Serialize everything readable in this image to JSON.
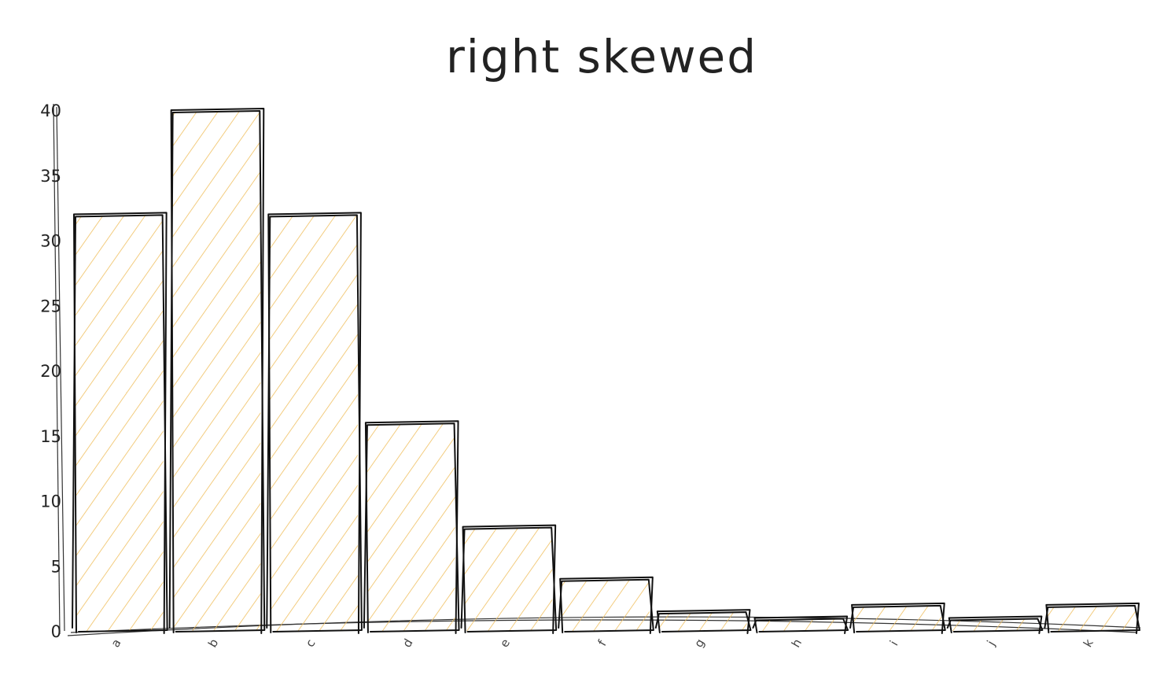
{
  "chart_data": {
    "type": "bar",
    "title": "right skewed",
    "xlabel": "",
    "ylabel": "",
    "categories": [
      "a",
      "b",
      "c",
      "d",
      "e",
      "f",
      "g",
      "h",
      "i",
      "j",
      "k"
    ],
    "values": [
      32,
      40,
      32,
      16,
      8,
      4,
      1.5,
      1,
      2,
      1,
      2
    ],
    "ylim": [
      0,
      40
    ],
    "yticks": [
      0,
      5,
      10,
      15,
      20,
      25,
      30,
      35,
      40
    ],
    "grid": false,
    "legend": "none",
    "colors": {
      "fill_hatch": "#f0c060",
      "outline": "#111111",
      "text": "#222222"
    }
  }
}
